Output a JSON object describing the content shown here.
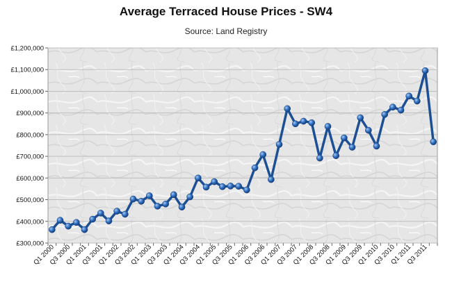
{
  "chart_data": {
    "type": "line",
    "title": "Average Terraced House Prices - SW4",
    "subtitle": "Source: Land Registry",
    "xlabel": "",
    "ylabel": "",
    "ylim": [
      300000,
      1200000
    ],
    "y_ticks": [
      300000,
      400000,
      500000,
      600000,
      700000,
      800000,
      900000,
      1000000,
      1100000,
      1200000
    ],
    "y_tick_labels": [
      "£300,000",
      "£400,000",
      "£500,000",
      "£600,000",
      "£700,000",
      "£800,000",
      "£900,000",
      "£1,000,000",
      "£1,100,000",
      "£1,200,000"
    ],
    "grid": true,
    "legend": "none",
    "x": [
      "Q1 2000",
      "Q2 2000",
      "Q3 2000",
      "Q4 2000",
      "Q1 2001",
      "Q2 2001",
      "Q3 2001",
      "Q4 2001",
      "Q1 2002",
      "Q2 2002",
      "Q3 2002",
      "Q4 2002",
      "Q1 2003",
      "Q2 2003",
      "Q3 2003",
      "Q4 2003",
      "Q1 2004",
      "Q2 2004",
      "Q3 2004",
      "Q4 2004",
      "Q1 2005",
      "Q2 2005",
      "Q3 2005",
      "Q4 2005",
      "Q1 2006",
      "Q2 2006",
      "Q3 2006",
      "Q4 2006",
      "Q1 2007",
      "Q2 2007",
      "Q3 2007",
      "Q4 2007",
      "Q1 2008",
      "Q2 2008",
      "Q3 2008",
      "Q4 2008",
      "Q1 2009",
      "Q2 2009",
      "Q3 2009",
      "Q4 2009",
      "Q1 2010",
      "Q2 2010",
      "Q3 2010",
      "Q4 2010",
      "Q1 2011",
      "Q2 2011",
      "Q3 2011",
      "Q4 2011"
    ],
    "x_tick_labels": [
      "Q1 2000",
      "Q3 2000",
      "Q1 2001",
      "Q3 2001",
      "Q1 2002",
      "Q3 2002",
      "Q1 2003",
      "Q3 2003",
      "Q1 2004",
      "Q3 2004",
      "Q1 2005",
      "Q3 2005",
      "Q1 2006",
      "Q3 2006",
      "Q1 2007",
      "Q3 2007",
      "Q1 2008",
      "Q3 2008",
      "Q1 2009",
      "Q3 2009",
      "Q1 2010",
      "Q3 2010",
      "Q1 2011",
      "Q3 2011"
    ],
    "series": [
      {
        "values": [
          362000,
          405000,
          378000,
          395000,
          362000,
          410000,
          438000,
          402000,
          447000,
          433000,
          503000,
          493000,
          518000,
          470000,
          480000,
          523000,
          466000,
          513000,
          600000,
          558000,
          583000,
          560000,
          563000,
          562000,
          545000,
          647000,
          708000,
          593000,
          755000,
          920000,
          850000,
          862000,
          855000,
          692000,
          838000,
          703000,
          785000,
          742000,
          878000,
          820000,
          747000,
          893000,
          927000,
          913000,
          978000,
          955000,
          1095000,
          767000
        ]
      }
    ],
    "colors": {
      "line": "#1c4f93",
      "marker": "#2f6fc2",
      "marker_highlight": "#a9c8f0",
      "plot_bg": "#e7e7e7",
      "grid": "#bdbdbd"
    }
  }
}
